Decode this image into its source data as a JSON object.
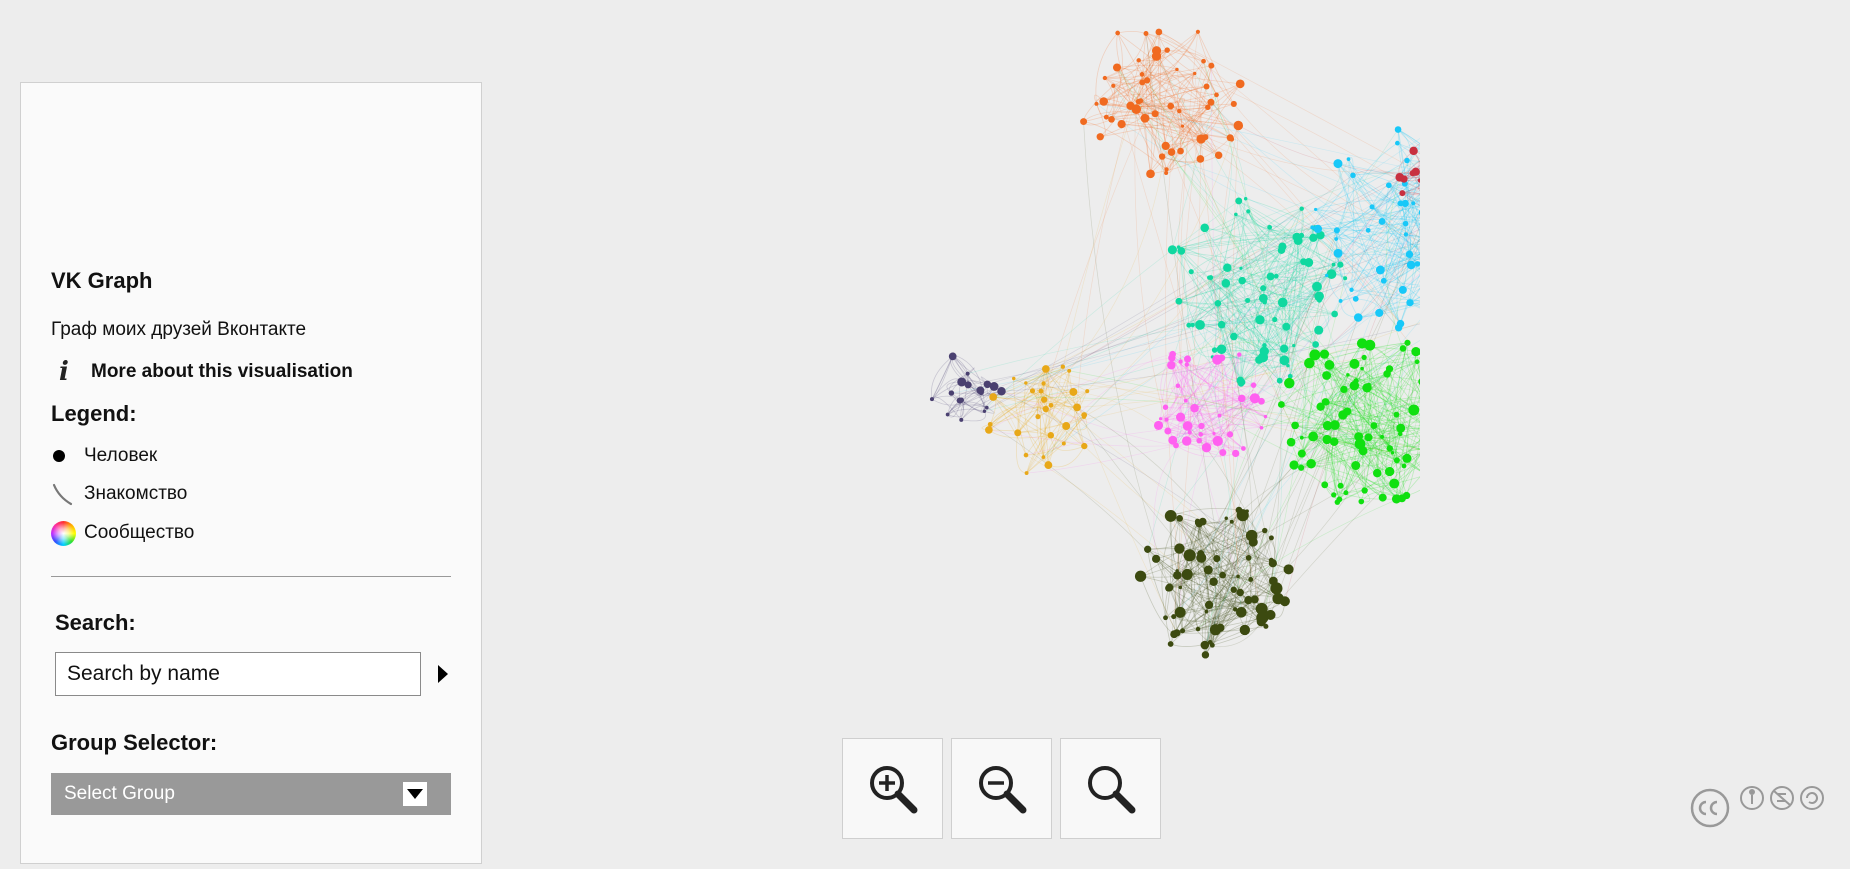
{
  "sidebar": {
    "title": "VK Graph",
    "subtitle": "Граф моих друзей Вконтакте",
    "more_link": "More about this visualisation",
    "info_icon": "i",
    "legend": {
      "title": "Legend:",
      "items": [
        {
          "icon": "node-dot-icon",
          "label": "Человек"
        },
        {
          "icon": "edge-curve-icon",
          "label": "Знакомство"
        },
        {
          "icon": "color-wheel-icon",
          "label": "Сообщество"
        }
      ]
    },
    "search": {
      "label": "Search:",
      "placeholder": "Search by name"
    },
    "group_selector": {
      "label": "Group Selector:",
      "selected": "Select Group"
    }
  },
  "zoom_controls": [
    {
      "name": "zoom-in",
      "icon": "zoom-in-icon"
    },
    {
      "name": "zoom-out",
      "icon": "zoom-out-icon"
    },
    {
      "name": "zoom-reset",
      "icon": "magnifier-icon"
    }
  ],
  "graph": {
    "communities": [
      {
        "color": "#f06a20"
      },
      {
        "color": "#10d8a0"
      },
      {
        "color": "#18c8f8"
      },
      {
        "color": "#10e010"
      },
      {
        "color": "#ff60f0"
      },
      {
        "color": "#3c4a10"
      },
      {
        "color": "#4a4070"
      },
      {
        "color": "#e8a818"
      },
      {
        "color": "#c83040"
      }
    ]
  },
  "license": {
    "icons": [
      "cc-icon",
      "by-icon",
      "nc-icon",
      "sa-icon"
    ]
  }
}
